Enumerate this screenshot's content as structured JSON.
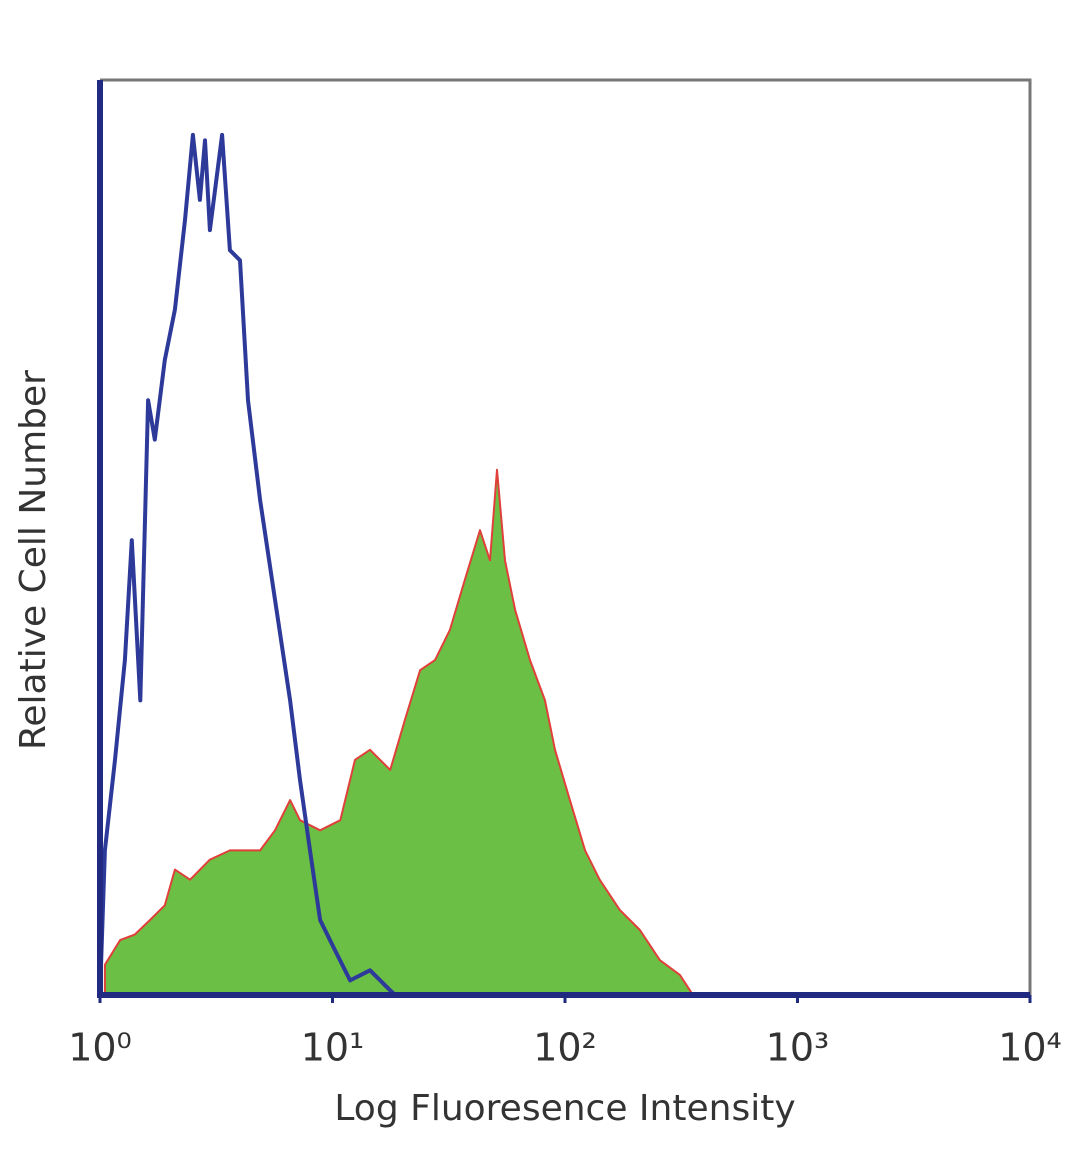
{
  "chart_data": {
    "type": "histogram-overlay",
    "xlabel": "Log Fluoresence Intensity",
    "ylabel": "Relative Cell Number",
    "xscale": "log",
    "xlim": [
      1,
      10000
    ],
    "xticks": [
      {
        "value": 1,
        "label": "10⁰"
      },
      {
        "value": 10,
        "label": "10¹"
      },
      {
        "value": 100,
        "label": "10²"
      },
      {
        "value": 1000,
        "label": "10³"
      },
      {
        "value": 10000,
        "label": "10⁴"
      }
    ],
    "ylim": [
      0,
      100
    ],
    "series": [
      {
        "color": "#6cbf45",
        "line_color": "#e0403a",
        "filled": true,
        "x": [
          1.05,
          1.22,
          1.41,
          1.64,
          1.9,
          2.1,
          2.44,
          2.97,
          3.62,
          4.88,
          5.66,
          6.57,
          7.25,
          8.84,
          10.8,
          12.5,
          14.5,
          17.7,
          20.5,
          23.8,
          27.6,
          32,
          37.1,
          43.1,
          47.6,
          51,
          55.2,
          61,
          70.7,
          82,
          90.6,
          105,
          122,
          141,
          172,
          210,
          256,
          312,
          345,
          355
        ],
        "values": [
          3.3,
          6,
          6.6,
          8.2,
          9.8,
          13.7,
          12.6,
          14.8,
          15.8,
          15.8,
          18,
          21.3,
          19.1,
          18,
          19.1,
          25.7,
          26.8,
          24.6,
          30.1,
          35.5,
          36.6,
          39.9,
          45.4,
          50.8,
          47.5,
          57.4,
          47.5,
          42.1,
          36.6,
          32.2,
          26.8,
          21.3,
          15.8,
          12.6,
          9.3,
          7.1,
          3.8,
          2.2,
          0.5,
          0
        ]
      },
      {
        "color": "#2e3a9a",
        "filled": false,
        "x": [
          1,
          1.05,
          1.16,
          1.28,
          1.37,
          1.49,
          1.61,
          1.72,
          1.9,
          2.1,
          2.32,
          2.51,
          2.69,
          2.83,
          2.97,
          3.35,
          3.62,
          4,
          4.33,
          4.88,
          5.66,
          6.57,
          7.25,
          8,
          8.84,
          10.25,
          11.9,
          14.5,
          17.7,
          18.6
        ],
        "values": [
          0,
          15.8,
          25.7,
          36.6,
          49.7,
          32.2,
          65,
          60.7,
          69.4,
          74.9,
          84.7,
          94,
          86.9,
          93.4,
          83.6,
          94,
          81.4,
          80.3,
          65,
          54.1,
          43.2,
          32.2,
          23.5,
          15.8,
          8.2,
          4.9,
          1.6,
          2.7,
          0.5,
          0
        ]
      }
    ]
  }
}
